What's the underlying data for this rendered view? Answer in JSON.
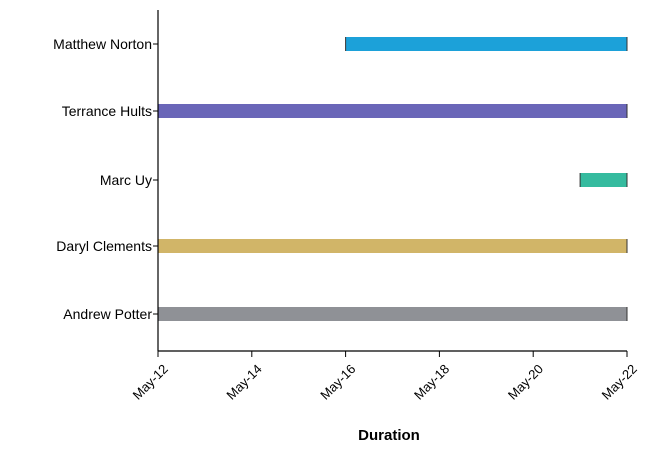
{
  "chart_data": {
    "type": "bar",
    "orientation": "horizontal",
    "subtype": "gantt",
    "title": "",
    "xlabel": "Duration",
    "ylabel": "",
    "x_axis_type": "date",
    "xlim": [
      "2021-05-12",
      "2021-05-22"
    ],
    "x_ticks": [
      {
        "value": "2021-05-12",
        "label": "May-12"
      },
      {
        "value": "2021-05-14",
        "label": "May-14"
      },
      {
        "value": "2021-05-16",
        "label": "May-16"
      },
      {
        "value": "2021-05-18",
        "label": "May-18"
      },
      {
        "value": "2021-05-20",
        "label": "May-20"
      },
      {
        "value": "2021-05-22",
        "label": "May-22"
      }
    ],
    "grid": false,
    "legend": "none",
    "categories": [
      "Matthew Norton",
      "Terrance Hults",
      "Marc Uy",
      "Daryl Clements",
      "Andrew Potter"
    ],
    "tasks": [
      {
        "name": "Matthew Norton",
        "start": "2021-05-16",
        "end": "2021-05-22",
        "color": "#1ca1d9"
      },
      {
        "name": "Terrance Hults",
        "start": "2021-05-12",
        "end": "2021-05-22",
        "color": "#6a66b8"
      },
      {
        "name": "Marc Uy",
        "start": "2021-05-21",
        "end": "2021-05-22",
        "color": "#35bb9f"
      },
      {
        "name": "Daryl Clements",
        "start": "2021-05-12",
        "end": "2021-05-22",
        "color": "#d1b568"
      },
      {
        "name": "Andrew Potter",
        "start": "2021-05-12",
        "end": "2021-05-22",
        "color": "#8f9196"
      }
    ],
    "axis_color": "#000000",
    "text_color": "#000000"
  }
}
